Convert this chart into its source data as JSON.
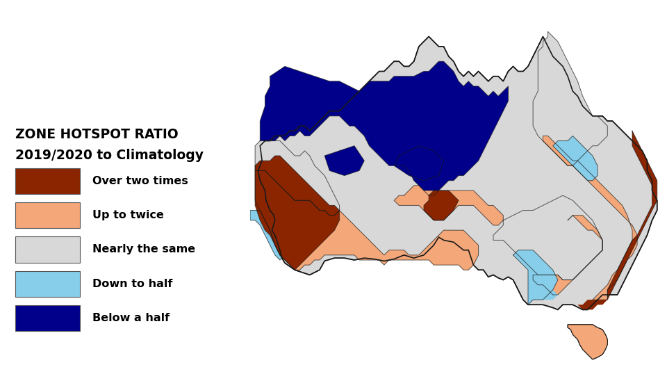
{
  "title_line1": "ZONE HOTSPOT RATIO",
  "title_line2": "2019/2020 to Climatology",
  "legend_labels": [
    "Over two times",
    "Up to twice",
    "Nearly the same",
    "Down to half",
    "Below a half"
  ],
  "legend_colors": [
    "#8B2500",
    "#F4A778",
    "#D8D8D8",
    "#87CEEB",
    "#00008B"
  ],
  "background_color": "#B0C4DE",
  "figure_bg": "#FFFFFF",
  "map_edge_color": "#1a1a1a",
  "lon_min": 112.5,
  "lon_max": 154.5,
  "lat_min": -44.5,
  "lat_max": -9.5
}
